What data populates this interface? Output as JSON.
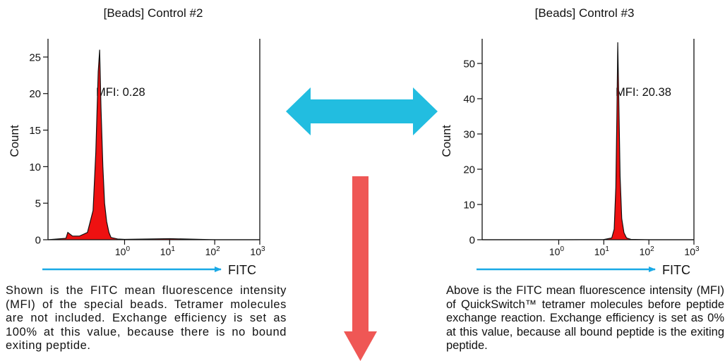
{
  "colors": {
    "axis": "#111111",
    "histogram_fill": "#ee1111",
    "histogram_outline": "#111111",
    "double_arrow": "#22bde0",
    "down_arrow": "#ef5755",
    "fitc_arrow": "#1aa9e6"
  },
  "panels": [
    {
      "title": "[Beads] Control #2",
      "ylabel": "Count",
      "xlabel": "FITC",
      "mfi_label": "MFI: 0.28",
      "y_ticks": [
        "0",
        "5",
        "10",
        "15",
        "20",
        "25"
      ],
      "x_ticks": [
        {
          "base": "10",
          "exp": "0"
        },
        {
          "base": "10",
          "exp": "1"
        },
        {
          "base": "10",
          "exp": "2"
        },
        {
          "base": "10",
          "exp": "3"
        }
      ],
      "caption": "Shown is the FITC mean fluorescence intensity (MFI) of the special beads. Tetramer molecules are not included. Exchange efficiency is set as 100% at this value, because there is no bound exiting peptide."
    },
    {
      "title": "[Beads] Control #3",
      "ylabel": "Count",
      "xlabel": "FITC",
      "mfi_label": "MFI: 20.38",
      "y_ticks": [
        "0",
        "10",
        "20",
        "30",
        "40",
        "50"
      ],
      "x_ticks": [
        {
          "base": "10",
          "exp": "0"
        },
        {
          "base": "10",
          "exp": "1"
        },
        {
          "base": "10",
          "exp": "2"
        },
        {
          "base": "10",
          "exp": "3"
        }
      ],
      "caption": "Above is the FITC mean fluorescence intensity (MFI) of QuickSwitch™ tetramer molecules before peptide exchange reaction. Exchange efficiency is set as 0% at this value, because all bound peptide is the exiting peptide."
    }
  ],
  "chart_data": [
    {
      "type": "area",
      "title": "[Beads] Control #2",
      "xlabel": "FITC",
      "ylabel": "Count",
      "x_scale": "log",
      "xlim": [
        0.02,
        1000
      ],
      "ylim": [
        0,
        27.5
      ],
      "annotation": "MFI: 0.28",
      "series": [
        {
          "x": [
            0.02,
            0.05,
            0.055,
            0.07,
            0.1,
            0.15,
            0.2,
            0.23,
            0.26,
            0.28,
            0.3,
            0.33,
            0.36,
            0.4,
            0.45,
            0.5,
            0.7,
            1,
            10,
            100,
            1000
          ],
          "y": [
            0,
            0.2,
            1,
            0.5,
            0.5,
            1,
            4,
            12,
            23,
            26,
            18,
            10,
            5,
            2.5,
            1,
            0.3,
            0.1,
            0.05,
            0.15,
            0,
            0
          ]
        }
      ]
    },
    {
      "type": "area",
      "title": "[Beads] Control #3",
      "xlabel": "FITC",
      "ylabel": "Count",
      "x_scale": "log",
      "xlim": [
        0.02,
        1000
      ],
      "ylim": [
        0,
        57
      ],
      "annotation": "MFI: 20.38",
      "series": [
        {
          "x": [
            0.02,
            1,
            10,
            15,
            17,
            18.5,
            19.5,
            20.4,
            21.5,
            23,
            25,
            28,
            32,
            40,
            100,
            1000
          ],
          "y": [
            0,
            0,
            0.05,
            0.5,
            3,
            15,
            35,
            56,
            40,
            18,
            6,
            2,
            0.5,
            0.1,
            0,
            0
          ]
        }
      ]
    }
  ]
}
